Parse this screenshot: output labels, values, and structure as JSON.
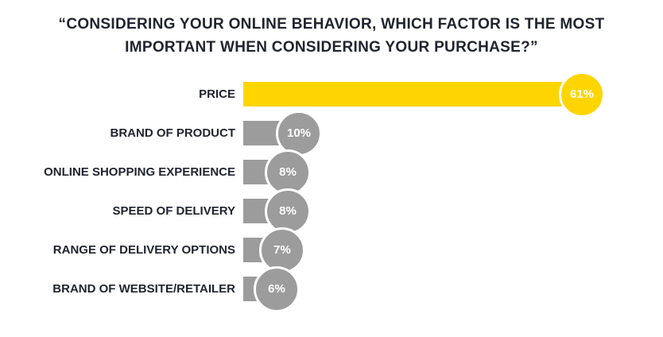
{
  "chart_data": {
    "type": "bar",
    "orientation": "horizontal",
    "title": "“CONSIDERING YOUR ONLINE BEHAVIOR, WHICH FACTOR IS THE MOST IMPORTANT WHEN CONSIDERING YOUR PURCHASE?”",
    "categories": [
      "PRICE",
      "BRAND OF PRODUCT",
      "ONLINE SHOPPING EXPERIENCE",
      "SPEED OF DELIVERY",
      "RANGE OF DELIVERY OPTIONS",
      "BRAND OF WEBSITE/RETAILER"
    ],
    "values": [
      61,
      10,
      8,
      8,
      7,
      6
    ],
    "labels": [
      "61%",
      "10%",
      "8%",
      "8%",
      "7%",
      "6%"
    ],
    "xlabel": "",
    "ylabel": "",
    "xlim": [
      0,
      61
    ],
    "grid": false,
    "legend": "none",
    "colors": {
      "accent": "#ffd500",
      "gray": "#9c9c9c",
      "text": "#21242f",
      "badge_text": "#ffffff",
      "background": "#ffffff"
    }
  }
}
